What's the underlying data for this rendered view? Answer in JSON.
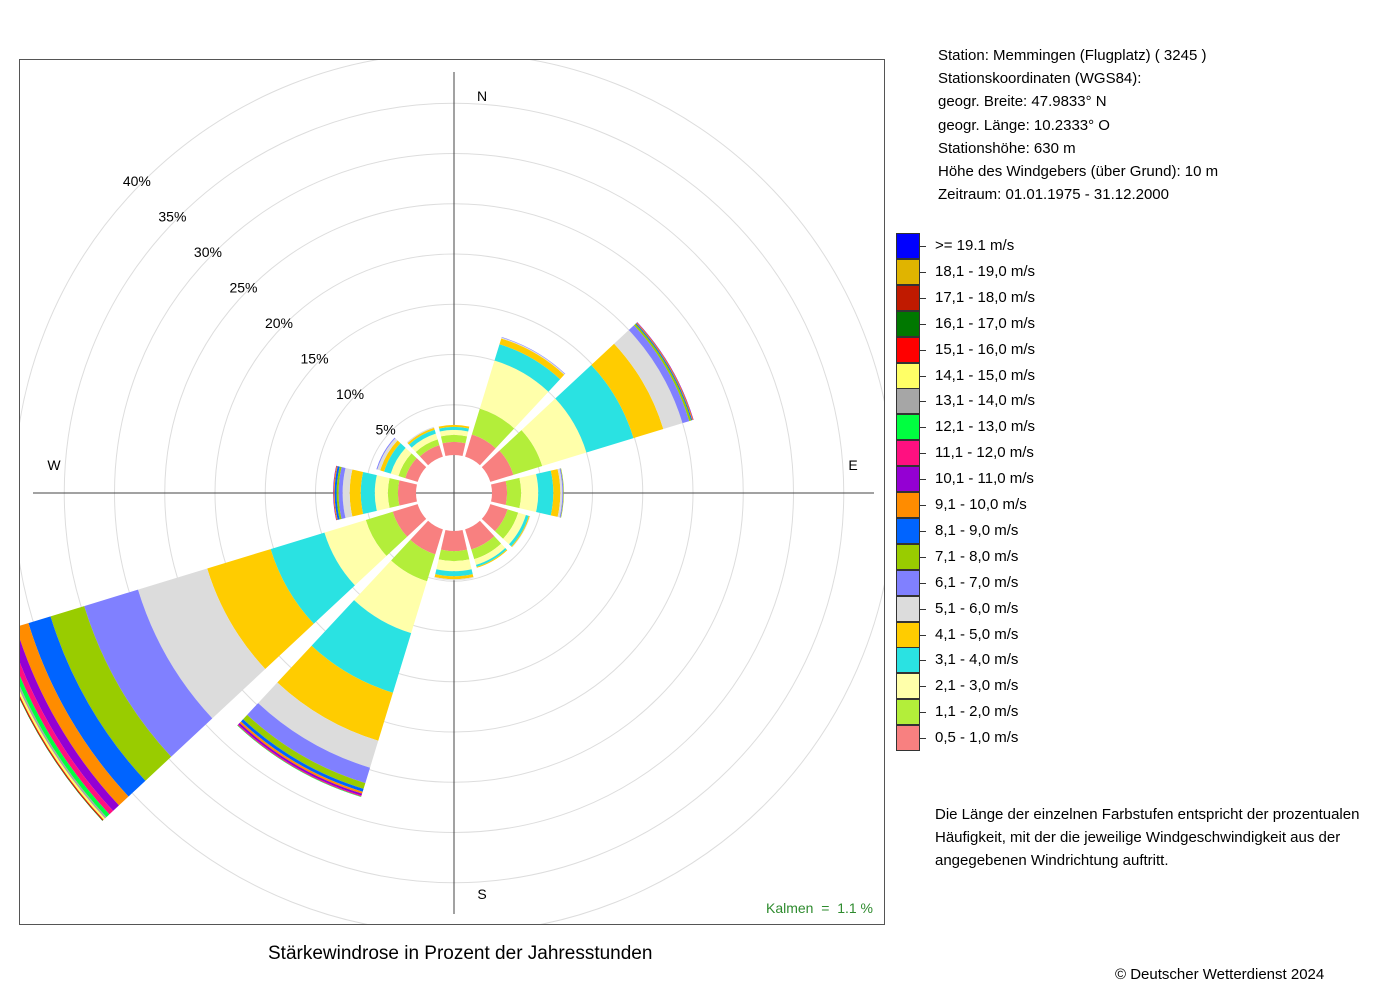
{
  "station": {
    "line1": "Station:  Memmingen (Flugplatz)  ( 3245 )",
    "line2": "Stationskoordinaten (WGS84):",
    "line3": "geogr. Breite: 47.9833° N",
    "line4": "geogr. Länge: 10.2333° O",
    "line5": "Stationshöhe: 630 m",
    "line6": "Höhe des Windgebers (über Grund): 10 m",
    "line7": "Zeitraum: 01.01.1975 - 31.12.2000"
  },
  "note": {
    "line1": "Die Länge der einzelnen Farbstufen entspricht der prozentualen",
    "line2": "Häufigkeit, mit der die jeweilige Windgeschwindigkeit aus der",
    "line3": "angegebenen Windrichtung auftritt."
  },
  "title": "Stärkewindrose in Prozent der Jahresstunden",
  "copyright": "© Deutscher Wetterdienst  2024",
  "chart_data": {
    "type": "wind-rose",
    "calm_label": "Kalmen  =  1.1 %",
    "calm_percent": 1.1,
    "compass_labels": [
      "N",
      "E",
      "S",
      "W"
    ],
    "radial_ticks": [
      "5%",
      "10%",
      "15%",
      "20%",
      "25%",
      "30%",
      "35%",
      "40%"
    ],
    "radial_tick_values": [
      5,
      10,
      15,
      20,
      25,
      30,
      35,
      40
    ],
    "grid": true,
    "legend_placement": "right",
    "classes": [
      {
        "label": ">= 19.1 m/s",
        "color": "#0000ff"
      },
      {
        "label": "18,1 - 19,0 m/s",
        "color": "#e0b400"
      },
      {
        "label": "17,1 - 18,0 m/s",
        "color": "#c01a00"
      },
      {
        "label": "16,1 - 17,0 m/s",
        "color": "#007800"
      },
      {
        "label": "15,1 - 16,0 m/s",
        "color": "#ff0000"
      },
      {
        "label": "14,1 - 15,0 m/s",
        "color": "#ffff66"
      },
      {
        "label": "13,1 - 14,0 m/s",
        "color": "#a6a6a6"
      },
      {
        "label": "12,1 - 13,0 m/s",
        "color": "#00ff40"
      },
      {
        "label": "11,1 - 12,0 m/s",
        "color": "#ff1080"
      },
      {
        "label": "10,1 - 11,0 m/s",
        "color": "#9400d3"
      },
      {
        "label": "9,1 - 10,0 m/s",
        "color": "#ff8c00"
      },
      {
        "label": "8,1 - 9,0 m/s",
        "color": "#0064ff"
      },
      {
        "label": "7,1 - 8,0 m/s",
        "color": "#99cc00"
      },
      {
        "label": "6,1 - 7,0 m/s",
        "color": "#8080ff"
      },
      {
        "label": "5,1 - 6,0 m/s",
        "color": "#dcdcdc"
      },
      {
        "label": "4,1 - 5,0 m/s",
        "color": "#ffcc00"
      },
      {
        "label": "3,1 - 4,0 m/s",
        "color": "#2ae2e2"
      },
      {
        "label": "2,1 - 3,0 m/s",
        "color": "#ffffaa"
      },
      {
        "label": "1,1 - 2,0 m/s",
        "color": "#b3ee3a"
      },
      {
        "label": "0,5 - 1,0 m/s",
        "color": "#f88080"
      }
    ],
    "sectors": [
      {
        "direction_deg": 0,
        "values": [
          1.3,
          0.7,
          0.5,
          0.3,
          0.2
        ]
      },
      {
        "direction_deg": 30,
        "values": [
          2.3,
          2.7,
          5.0,
          1.7,
          0.6,
          0.1,
          0.05
        ]
      },
      {
        "direction_deg": 60,
        "values": [
          2.4,
          3.0,
          4.6,
          4.9,
          3.1,
          2.0,
          0.7,
          0.2,
          0.1,
          0.1,
          0.05
        ]
      },
      {
        "direction_deg": 90,
        "values": [
          1.5,
          1.4,
          1.7,
          1.5,
          0.7,
          0.2,
          0.1,
          0.05
        ]
      },
      {
        "direction_deg": 120,
        "values": [
          1.8,
          1.1,
          0.8,
          0.3,
          0.1,
          0.05
        ]
      },
      {
        "direction_deg": 150,
        "values": [
          2.1,
          1.0,
          0.6,
          0.2,
          0.1
        ]
      },
      {
        "direction_deg": 180,
        "values": [
          2.0,
          1.0,
          1.0,
          0.5,
          0.3,
          0.1
        ]
      },
      {
        "direction_deg": 210,
        "values": [
          2.6,
          2.8,
          5.4,
          6.2,
          5.0,
          2.8,
          1.6,
          0.6,
          0.3,
          0.2,
          0.2,
          0.1,
          0.05
        ]
      },
      {
        "direction_deg": 240,
        "values": [
          2.6,
          2.8,
          4.3,
          5.6,
          6.6,
          7.2,
          5.6,
          3.5,
          2.3,
          1.3,
          0.8,
          0.5,
          0.4,
          0.2,
          0.2,
          0.1,
          0.05
        ]
      },
      {
        "direction_deg": 270,
        "values": [
          1.8,
          1.0,
          1.3,
          1.4,
          1.1,
          0.7,
          0.4,
          0.2,
          0.2,
          0.1,
          0.05
        ]
      },
      {
        "direction_deg": 300,
        "values": [
          1.3,
          0.7,
          0.8,
          0.7,
          0.4,
          0.3,
          0.1
        ]
      },
      {
        "direction_deg": 330,
        "values": [
          1.2,
          0.6,
          0.6,
          0.4,
          0.2,
          0.1
        ]
      }
    ]
  }
}
